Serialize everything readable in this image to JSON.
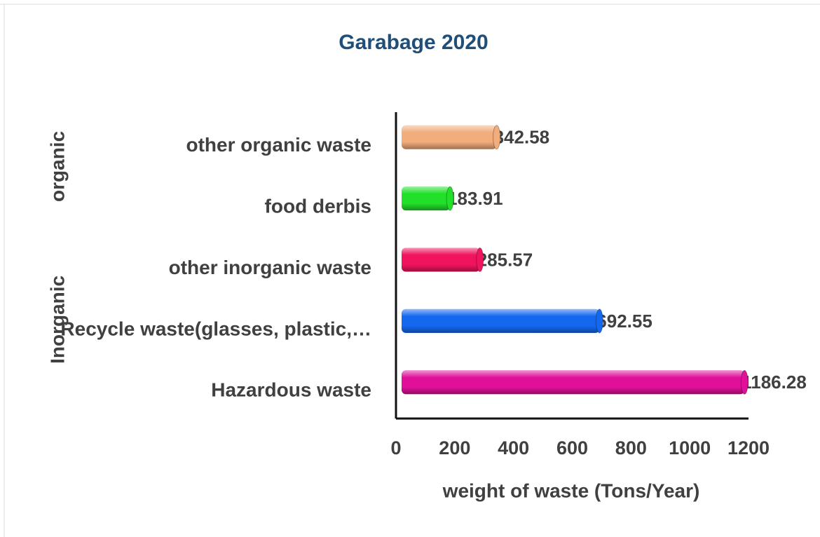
{
  "chart_data": {
    "type": "bar",
    "orientation": "horizontal",
    "title": "Garabage 2020",
    "xlabel": "weight of waste (Tons/Year)",
    "categories": [
      "other organic waste",
      "food derbis",
      "other inorganic waste",
      "Recycle waste(glasses, plastic,…",
      "Hazardous waste"
    ],
    "values": [
      342.58,
      183.91,
      285.57,
      692.55,
      1186.28
    ],
    "colors": [
      "#f2ad7c",
      "#22e02a",
      "#f0145e",
      "#1468f0",
      "#e0109a"
    ],
    "groups": [
      {
        "label": "organic",
        "categories": [
          0,
          1
        ]
      },
      {
        "label": "Inorganic",
        "categories": [
          2,
          3,
          4
        ]
      }
    ],
    "xlim": [
      0,
      1200
    ],
    "xticks": [
      0,
      200,
      400,
      600,
      800,
      1000,
      1200
    ],
    "grid": false
  }
}
